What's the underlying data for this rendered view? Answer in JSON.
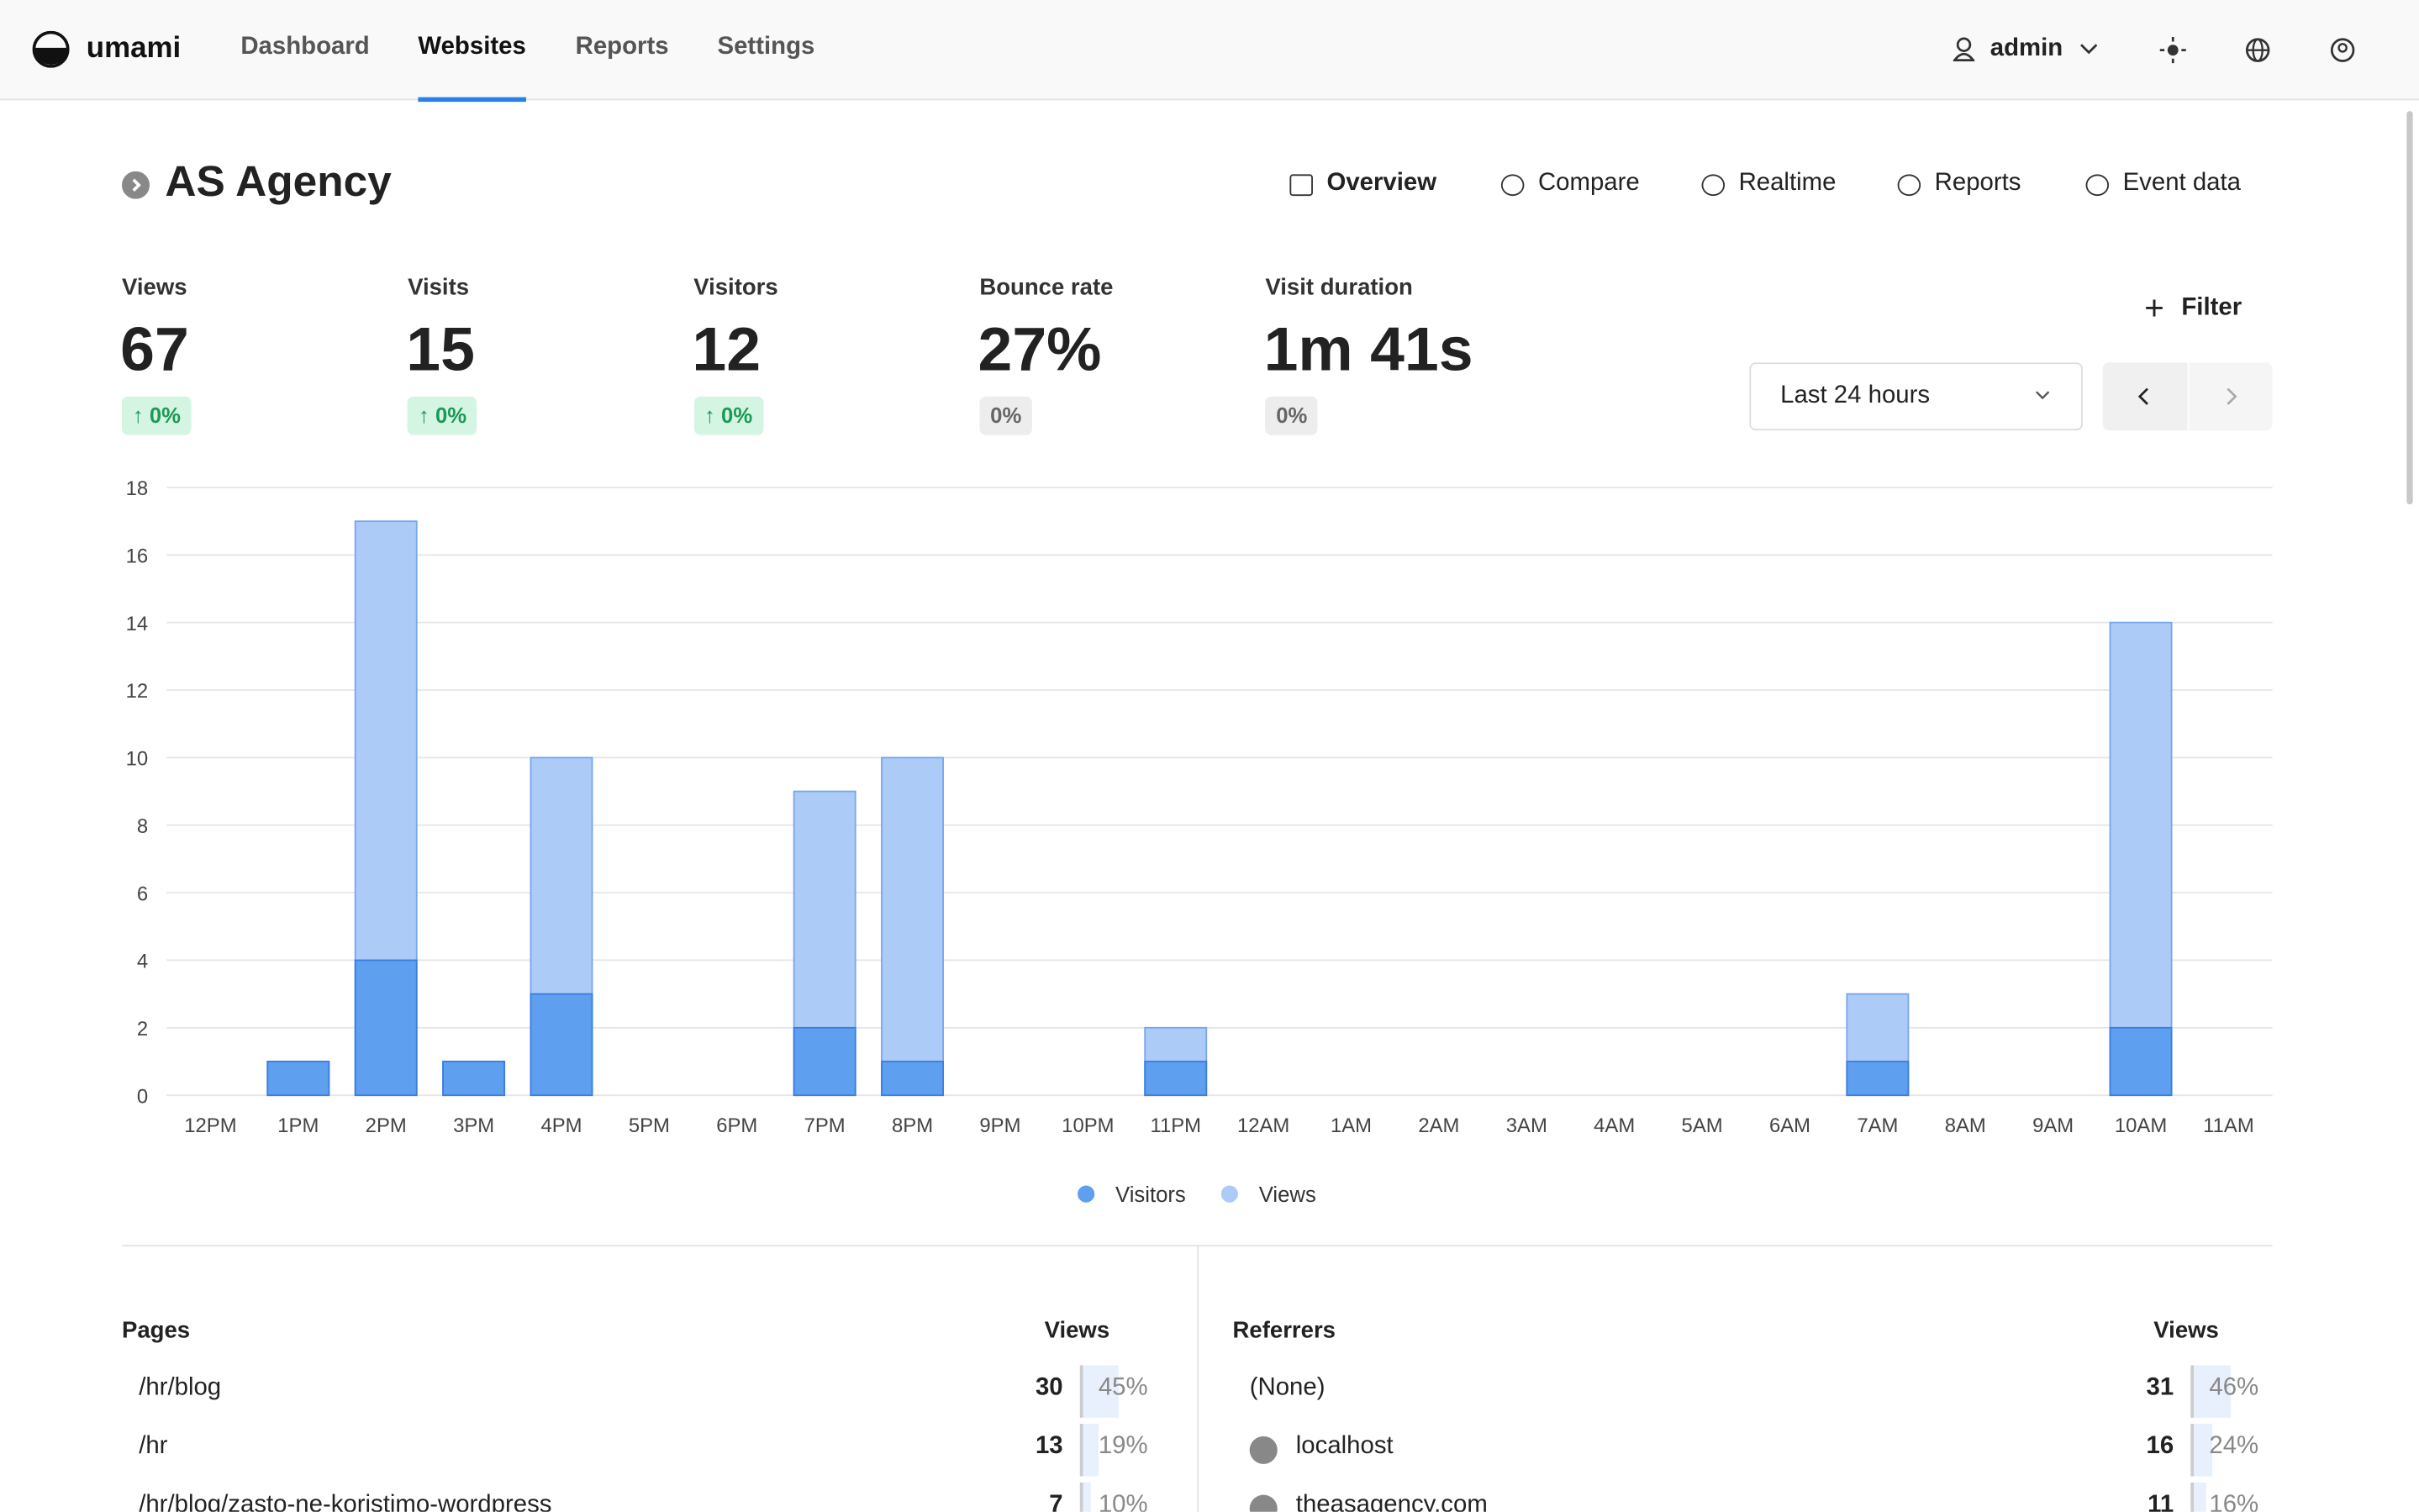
{
  "header": {
    "brand": "umami",
    "nav": [
      "Dashboard",
      "Websites",
      "Reports",
      "Settings"
    ],
    "active": "Websites",
    "user": "admin"
  },
  "website": {
    "title": "AS Agency",
    "tabs": [
      "Overview",
      "Compare",
      "Realtime",
      "Reports",
      "Event data"
    ]
  },
  "metrics": [
    {
      "label": "Views",
      "value": "67",
      "change": "0%",
      "trend": "up"
    },
    {
      "label": "Visits",
      "value": "15",
      "change": "0%",
      "trend": "up"
    },
    {
      "label": "Visitors",
      "value": "12",
      "change": "0%",
      "trend": "up"
    },
    {
      "label": "Bounce rate",
      "value": "27%",
      "change": "0%",
      "trend": "flat"
    },
    {
      "label": "Visit duration",
      "value": "1m 41s",
      "change": "0%",
      "trend": "flat"
    }
  ],
  "controls": {
    "filter": "Filter",
    "range": "Last 24 hours"
  },
  "chart_data": {
    "type": "bar",
    "categories": [
      "12PM",
      "1PM",
      "2PM",
      "3PM",
      "4PM",
      "5PM",
      "6PM",
      "7PM",
      "8PM",
      "9PM",
      "10PM",
      "11PM",
      "12AM",
      "1AM",
      "2AM",
      "3AM",
      "4AM",
      "5AM",
      "6AM",
      "7AM",
      "8AM",
      "9AM",
      "10AM",
      "11AM"
    ],
    "series": [
      {
        "name": "Visitors",
        "color": "#5f9ff0",
        "stroke": "#3a7de0",
        "values": [
          0,
          1,
          4,
          1,
          3,
          0,
          0,
          2,
          1,
          0,
          0,
          1,
          0,
          0,
          0,
          0,
          0,
          0,
          0,
          1,
          0,
          0,
          2,
          0
        ]
      },
      {
        "name": "Views",
        "color": "#adcbf7",
        "stroke": "#78a6ee",
        "values": [
          0,
          1,
          17,
          1,
          10,
          0,
          0,
          9,
          10,
          0,
          0,
          2,
          0,
          0,
          0,
          0,
          0,
          0,
          0,
          3,
          0,
          0,
          14,
          0
        ]
      }
    ],
    "ylim": [
      0,
      18
    ],
    "yticks": [
      0,
      2,
      4,
      6,
      8,
      10,
      12,
      14,
      16,
      18
    ],
    "grid": true,
    "legend": "bottom"
  },
  "tables": [
    {
      "title": "Pages",
      "metric": "Views",
      "rows": [
        {
          "label": "/hr/blog",
          "views": 30,
          "share": {
            "value": 45,
            "label": "45%"
          }
        },
        {
          "label": "/hr",
          "views": 13,
          "share": {
            "value": 19,
            "label": "19%"
          }
        },
        {
          "label": "/hr/blog/zasto-ne-koristimo-wordpress",
          "views": 7,
          "share": {
            "value": 10,
            "label": "10%"
          }
        }
      ]
    },
    {
      "title": "Referrers",
      "metric": "Views",
      "rows": [
        {
          "label": "(None)",
          "views": 31,
          "share": {
            "value": 46,
            "label": "46%"
          }
        },
        {
          "label": "localhost",
          "views": 16,
          "share": {
            "value": 24,
            "label": "24%"
          },
          "icon": true
        },
        {
          "label": "theasagency.com",
          "views": 11,
          "share": {
            "value": 16,
            "label": "16%"
          },
          "icon": true
        }
      ]
    }
  ]
}
